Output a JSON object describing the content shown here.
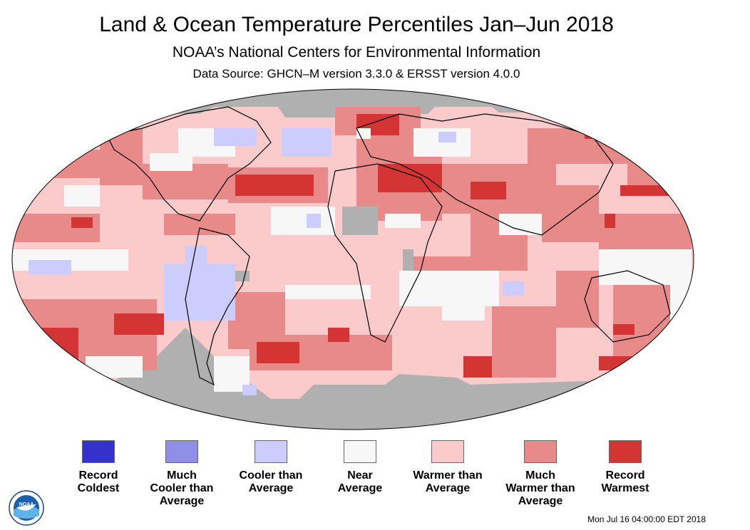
{
  "header": {
    "title": "Land & Ocean Temperature Percentiles Jan–Jun 2018",
    "subtitle": "NOAA’s National Centers for Environmental Information",
    "source": "Data Source: GHCN–M version 3.3.0 & ERSST version 4.0.0"
  },
  "colors": {
    "record_coldest": "#3333cc",
    "much_cooler": "#8f8fe8",
    "cooler": "#ccccff",
    "near": "#f7f7f7",
    "warmer": "#fbcbcb",
    "much_warmer": "#e88a8a",
    "record_warmest": "#d33535",
    "no_data": "#b0b0b0",
    "land_outline": "#000000"
  },
  "legend": [
    {
      "label": "Record\nColdest",
      "color_key": "record_coldest"
    },
    {
      "label": "Much\nCooler than\nAverage",
      "color_key": "much_cooler"
    },
    {
      "label": "Cooler than\nAverage",
      "color_key": "cooler"
    },
    {
      "label": "Near\nAverage",
      "color_key": "near"
    },
    {
      "label": "Warmer than\nAverage",
      "color_key": "warmer"
    },
    {
      "label": "Much\nWarmer than\nAverage",
      "color_key": "much_warmer"
    },
    {
      "label": "Record\nWarmest",
      "color_key": "record_warmest"
    }
  ],
  "logo": {
    "text": "NOAA",
    "icon": "noaa-logo-icon"
  },
  "footer": {
    "timestamp": "Mon Jul 16 04:00:00 EDT 2018"
  }
}
